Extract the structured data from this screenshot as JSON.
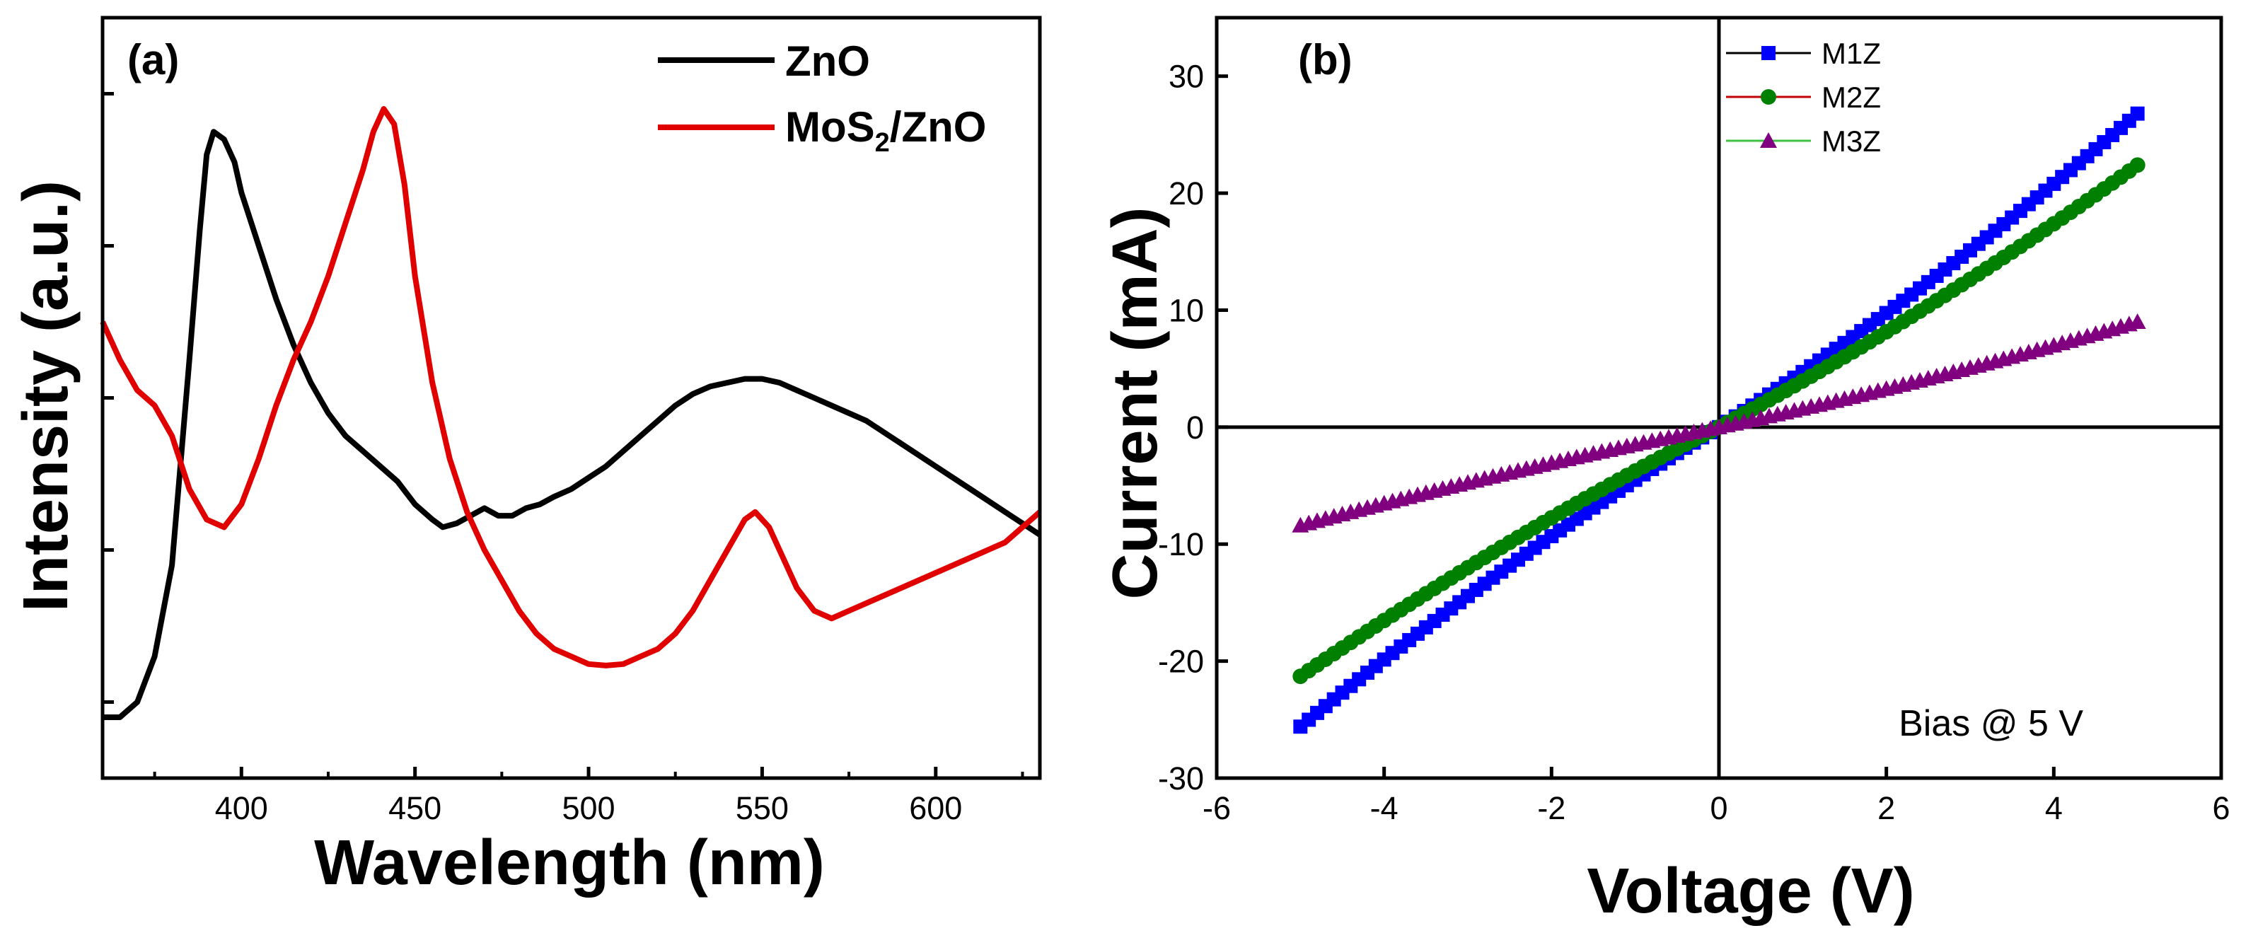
{
  "chart_data": [
    {
      "type": "line",
      "panel_label": "(a)",
      "xlabel": "Wavelength (nm)",
      "ylabel": "Intensity (a.u.)",
      "xlim": [
        360,
        630
      ],
      "ylim": [
        0,
        1
      ],
      "x_ticks": [
        400,
        450,
        500,
        550,
        600
      ],
      "y_tick_labels_shown": false,
      "series": [
        {
          "name": "ZnO",
          "color": "#000000",
          "points": [
            [
              360,
              0.08
            ],
            [
              365,
              0.08
            ],
            [
              370,
              0.1
            ],
            [
              375,
              0.16
            ],
            [
              380,
              0.28
            ],
            [
              385,
              0.55
            ],
            [
              388,
              0.72
            ],
            [
              390,
              0.82
            ],
            [
              392,
              0.85
            ],
            [
              395,
              0.84
            ],
            [
              398,
              0.81
            ],
            [
              400,
              0.77
            ],
            [
              405,
              0.7
            ],
            [
              410,
              0.63
            ],
            [
              415,
              0.57
            ],
            [
              420,
              0.52
            ],
            [
              425,
              0.48
            ],
            [
              430,
              0.45
            ],
            [
              435,
              0.43
            ],
            [
              440,
              0.41
            ],
            [
              445,
              0.39
            ],
            [
              450,
              0.36
            ],
            [
              455,
              0.34
            ],
            [
              458,
              0.33
            ],
            [
              462,
              0.335
            ],
            [
              466,
              0.345
            ],
            [
              470,
              0.355
            ],
            [
              474,
              0.345
            ],
            [
              478,
              0.345
            ],
            [
              482,
              0.355
            ],
            [
              486,
              0.36
            ],
            [
              490,
              0.37
            ],
            [
              495,
              0.38
            ],
            [
              500,
              0.395
            ],
            [
              505,
              0.41
            ],
            [
              510,
              0.43
            ],
            [
              515,
              0.45
            ],
            [
              520,
              0.47
            ],
            [
              525,
              0.49
            ],
            [
              530,
              0.505
            ],
            [
              535,
              0.515
            ],
            [
              540,
              0.52
            ],
            [
              545,
              0.525
            ],
            [
              550,
              0.525
            ],
            [
              555,
              0.52
            ],
            [
              560,
              0.51
            ],
            [
              565,
              0.5
            ],
            [
              570,
              0.49
            ],
            [
              580,
              0.47
            ],
            [
              590,
              0.44
            ],
            [
              600,
              0.41
            ],
            [
              610,
              0.38
            ],
            [
              620,
              0.35
            ],
            [
              630,
              0.32
            ]
          ]
        },
        {
          "name": "MoS2/ZnO",
          "name_main": "MoS",
          "name_sub": "2",
          "name_tail": "/ZnO",
          "color": "#e00000",
          "points": [
            [
              360,
              0.6
            ],
            [
              365,
              0.55
            ],
            [
              370,
              0.51
            ],
            [
              375,
              0.49
            ],
            [
              380,
              0.45
            ],
            [
              385,
              0.38
            ],
            [
              390,
              0.34
            ],
            [
              395,
              0.33
            ],
            [
              400,
              0.36
            ],
            [
              405,
              0.42
            ],
            [
              410,
              0.49
            ],
            [
              415,
              0.55
            ],
            [
              420,
              0.6
            ],
            [
              425,
              0.66
            ],
            [
              430,
              0.73
            ],
            [
              435,
              0.8
            ],
            [
              438,
              0.85
            ],
            [
              441,
              0.88
            ],
            [
              444,
              0.86
            ],
            [
              447,
              0.78
            ],
            [
              450,
              0.66
            ],
            [
              455,
              0.52
            ],
            [
              460,
              0.42
            ],
            [
              465,
              0.35
            ],
            [
              470,
              0.3
            ],
            [
              475,
              0.26
            ],
            [
              480,
              0.22
            ],
            [
              485,
              0.19
            ],
            [
              490,
              0.17
            ],
            [
              495,
              0.16
            ],
            [
              500,
              0.15
            ],
            [
              505,
              0.148
            ],
            [
              510,
              0.15
            ],
            [
              515,
              0.16
            ],
            [
              520,
              0.17
            ],
            [
              525,
              0.19
            ],
            [
              530,
              0.22
            ],
            [
              535,
              0.26
            ],
            [
              540,
              0.3
            ],
            [
              545,
              0.34
            ],
            [
              548,
              0.35
            ],
            [
              552,
              0.33
            ],
            [
              555,
              0.3
            ],
            [
              560,
              0.25
            ],
            [
              565,
              0.22
            ],
            [
              570,
              0.21
            ],
            [
              575,
              0.22
            ],
            [
              580,
              0.23
            ],
            [
              590,
              0.25
            ],
            [
              600,
              0.27
            ],
            [
              610,
              0.29
            ],
            [
              620,
              0.31
            ],
            [
              630,
              0.35
            ]
          ]
        }
      ]
    },
    {
      "type": "scatter",
      "panel_label": "(b)",
      "xlabel": "Voltage (V)",
      "ylabel": "Current (mA)",
      "xlim": [
        -6,
        6
      ],
      "ylim": [
        -30,
        35
      ],
      "x_ticks": [
        -6,
        -4,
        -2,
        0,
        2,
        4,
        6
      ],
      "y_ticks": [
        -30,
        -20,
        -10,
        0,
        10,
        20,
        30
      ],
      "annotation": "Bias @ 5 V",
      "series": [
        {
          "name": "M1Z",
          "color": "#0000ff",
          "marker": "square",
          "v_range": [
            -5,
            5
          ],
          "i_at_neg5": -25.6,
          "i_at_pos5": 26.8
        },
        {
          "name": "M2Z",
          "color": "#008000",
          "marker": "circle",
          "v_range": [
            -5,
            5
          ],
          "i_at_neg5": -21.3,
          "i_at_pos5": 22.4
        },
        {
          "name": "M3Z",
          "color": "#800080",
          "marker": "triangle",
          "v_range": [
            -5,
            5
          ],
          "i_at_neg5": -8.4,
          "i_at_pos5": 9.0
        }
      ],
      "legend_line_colors": {
        "M1Z": "#000000",
        "M2Z": "#c00000",
        "M3Z": "#40c040"
      }
    }
  ]
}
